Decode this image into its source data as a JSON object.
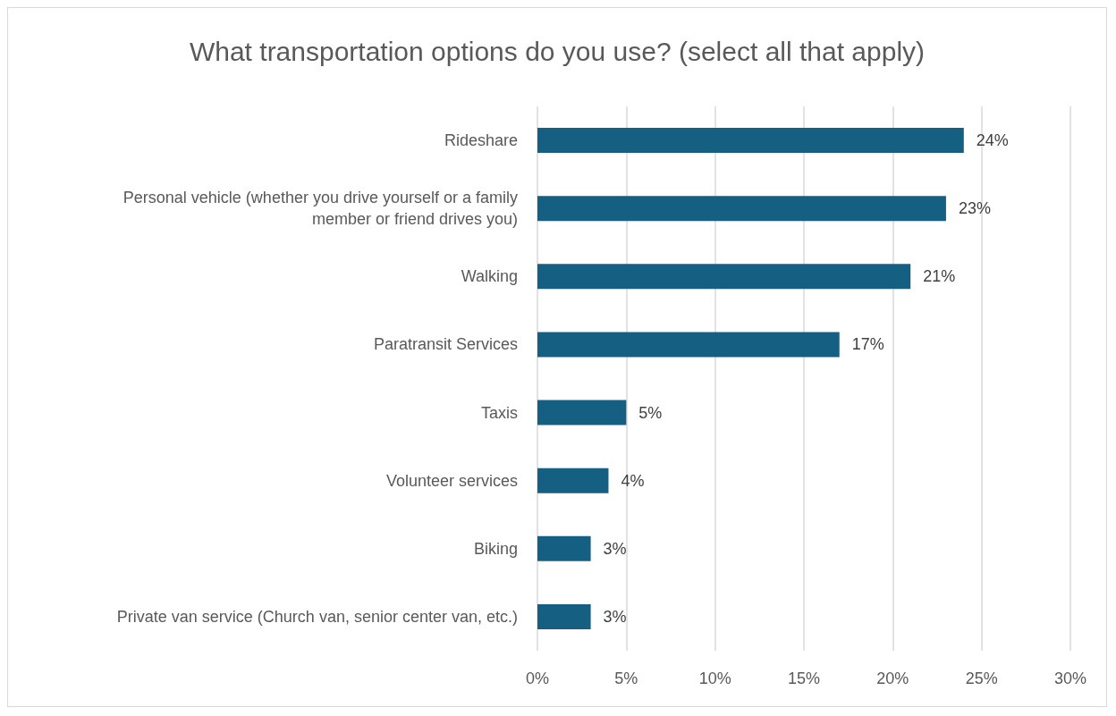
{
  "chart_data": {
    "type": "bar",
    "orientation": "horizontal",
    "title": "What transportation options do you use? (select all that apply)",
    "categories": [
      "Rideshare",
      "Personal vehicle (whether you drive yourself or a family member or friend drives you)",
      "Walking",
      "Paratransit Services",
      "Taxis",
      "Volunteer services",
      "Biking",
      "Private van service (Church van, senior center van, etc.)"
    ],
    "values": [
      24,
      23,
      21,
      17,
      5,
      4,
      3,
      3
    ],
    "color": "#156082",
    "xlim": [
      0,
      30
    ],
    "xticks": [
      {
        "value": 0,
        "label": "0%"
      },
      {
        "value": 5,
        "label": "5%"
      },
      {
        "value": 10,
        "label": "10%"
      },
      {
        "value": 15,
        "label": "15%"
      },
      {
        "value": 20,
        "label": "20%"
      },
      {
        "value": 25,
        "label": "25%"
      },
      {
        "value": 30,
        "label": "30%"
      }
    ],
    "value_labels": [
      "24%",
      "23%",
      "21%",
      "17%",
      "5%",
      "4%",
      "3%",
      "3%"
    ],
    "grid": "x"
  }
}
